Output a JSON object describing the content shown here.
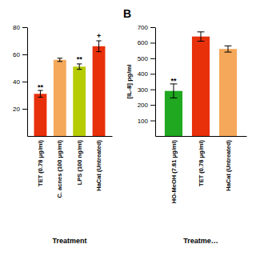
{
  "chart_data": [
    {
      "type": "bar",
      "categories": [
        "TET (0.78 μg/ml)",
        "C. acnes (100 μg/ml)",
        "LPS (100 ng/ml)",
        "HaCat (Untreated)"
      ],
      "values": [
        31,
        56,
        51,
        66
      ],
      "errors": [
        2.5,
        1.2,
        2.0,
        4.0
      ],
      "colors": [
        "#e8300a",
        "#f5a85a",
        "#b5cc00",
        "#e8300a"
      ],
      "xlabel": "Treatment",
      "ylim": [
        0,
        80
      ],
      "yticks": [
        20,
        40,
        60,
        80
      ],
      "annotations": [
        {
          "text": "**",
          "x": "TET (0.78 μg/ml)",
          "y": 34
        },
        {
          "text": "**",
          "x": "LPS (100 ng/ml)",
          "y": 55
        },
        {
          "text": "+",
          "x": "HaCat (Untreated)",
          "y": 72
        }
      ]
    },
    {
      "type": "bar",
      "title": "B",
      "categories": [
        "HO-MeOH (7.81 μg/ml)",
        "TET (0.78 μg/ml)",
        "HaCat (Untreated)"
      ],
      "values": [
        290,
        640,
        560
      ],
      "errors": [
        45,
        30,
        20
      ],
      "colors": [
        "#1fa820",
        "#e8300a",
        "#f5a85a"
      ],
      "ylabel": "[IL-8] pg/ml",
      "xlabel": "Treatme…",
      "ylim": [
        0,
        700
      ],
      "yticks": [
        100,
        200,
        300,
        400,
        500,
        600,
        700
      ],
      "annotations": [
        {
          "text": "**",
          "x": "HO-MeOH (7.81 μg/ml)",
          "y": 342
        }
      ]
    }
  ]
}
